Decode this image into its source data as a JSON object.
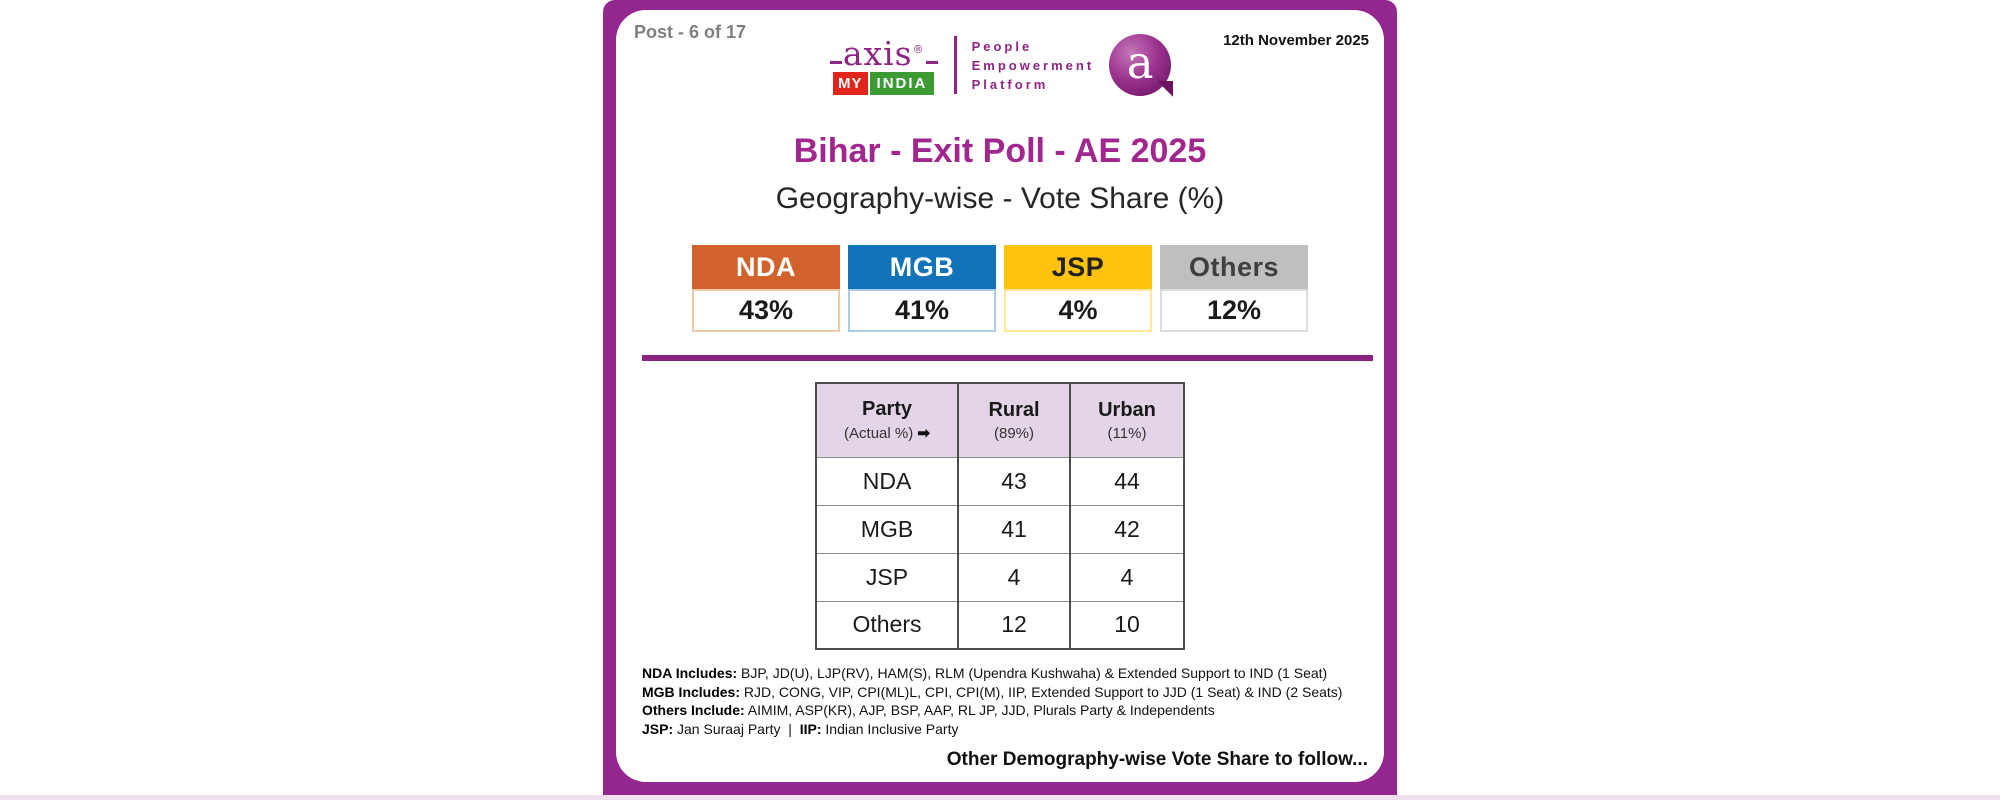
{
  "post_label": "Post - 6 of 17",
  "date": "12th November 2025",
  "logo": {
    "axis_text": "axis",
    "reg_mark": "®",
    "my_text": "MY",
    "india_text": "INDIA",
    "tagline": [
      "People",
      "Empowerment",
      "Platform"
    ],
    "bubble_letter": "a",
    "brand_purple": "#8E2585",
    "my_red": "#E1251B",
    "india_green": "#3D9B35"
  },
  "title": "Bihar - Exit Poll - AE 2025",
  "subtitle": "Geography-wise - Vote Share (%)",
  "summary_cards": [
    {
      "label": "NDA",
      "value": "43%",
      "header_color": "#D2622B",
      "border_color": "#F0C9A9"
    },
    {
      "label": "MGB",
      "value": "41%",
      "header_color": "#1273B9",
      "border_color": "#AACCE9"
    },
    {
      "label": "JSP",
      "value": "4%",
      "header_color": "#FFC20E",
      "border_color": "#FFE699"
    },
    {
      "label": "Others",
      "value": "12%",
      "header_color": "#BFBFBF",
      "border_color": "#DCDCDC"
    }
  ],
  "table": {
    "header": [
      {
        "label": "Party",
        "sub": "(Actual %)",
        "arrow": "➡"
      },
      {
        "label": "Rural",
        "sub": "(89%)"
      },
      {
        "label": "Urban",
        "sub": "(11%)"
      }
    ],
    "rows": [
      {
        "party": "NDA",
        "rural": "43",
        "urban": "44"
      },
      {
        "party": "MGB",
        "rural": "41",
        "urban": "42"
      },
      {
        "party": "JSP",
        "rural": "4",
        "urban": "4"
      },
      {
        "party": "Others",
        "rural": "12",
        "urban": "10"
      }
    ]
  },
  "chart_data": {
    "type": "table",
    "title": "Bihar - Exit Poll - AE 2025",
    "subtitle": "Geography-wise - Vote Share (%)",
    "overall_vote_share_pct": {
      "NDA": 43,
      "MGB": 41,
      "JSP": 4,
      "Others": 12
    },
    "categories": [
      "Rural (89%)",
      "Urban (11%)"
    ],
    "series": [
      {
        "name": "NDA",
        "values": [
          43,
          44
        ]
      },
      {
        "name": "MGB",
        "values": [
          41,
          42
        ]
      },
      {
        "name": "JSP",
        "values": [
          4,
          4
        ]
      },
      {
        "name": "Others",
        "values": [
          12,
          10
        ]
      }
    ]
  },
  "footnotes": [
    {
      "bold": "NDA Includes:",
      "text": " BJP, JD(U), LJP(RV), HAM(S), RLM (Upendra Kushwaha) & Extended Support to IND (1 Seat)"
    },
    {
      "bold": "MGB Includes:",
      "text": " RJD, CONG, VIP, CPI(ML)L, CPI, CPI(M), IIP, Extended Support to JJD (1 Seat) & IND (2 Seats)"
    },
    {
      "bold": "Others Include:",
      "text": " AIMIM, ASP(KR), AJP, BSP, AAP, RL JP, JJD, Plurals Party & Independents"
    },
    {
      "bold": "JSP:",
      "text": " Jan Suraaj Party  |  ",
      "bold2": "IIP:",
      "text2": " Indian Inclusive Party"
    }
  ],
  "footer_note": "Other Demography-wise Vote Share to follow...",
  "colors": {
    "frame_purple": "#93278F",
    "divider_purple": "#8B2383",
    "title_purple": "#A1268E",
    "table_header_bg": "#E3D4E7",
    "bottom_strip": "#F0DFEC"
  }
}
